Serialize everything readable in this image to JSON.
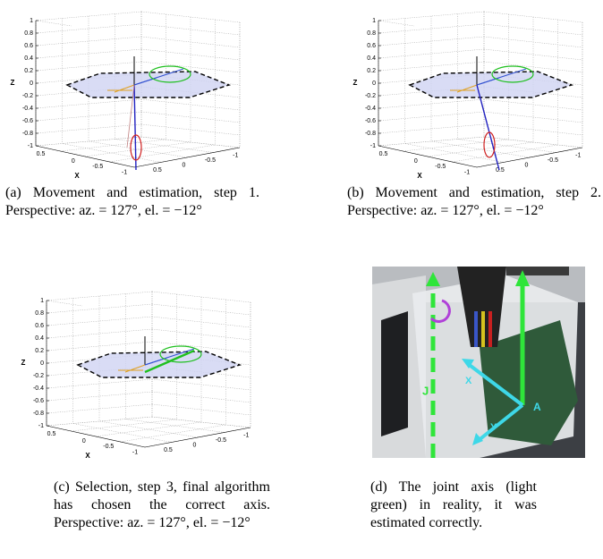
{
  "panels": [
    {
      "z_label": "Z",
      "x_label": "X",
      "z_ticks": [
        "1",
        "0.8",
        "0.6",
        "0.4",
        "0.2",
        "0",
        "-0.2",
        "-0.4",
        "-0.6",
        "-0.8",
        "-1"
      ],
      "x_ticks": [
        "0.5",
        "0",
        "-0.5",
        "-1"
      ],
      "y_ticks": [
        "0.5",
        "0",
        "-0.5",
        "-1"
      ],
      "caption": "(a) Movement and estimation, step 1. Perspective: az. = 127°, el. = −12°"
    },
    {
      "z_label": "Z",
      "x_label": "X",
      "z_ticks": [
        "1",
        "0.8",
        "0.6",
        "0.4",
        "0.2",
        "0",
        "-0.2",
        "-0.4",
        "-0.6",
        "-0.8",
        "-1"
      ],
      "x_ticks": [
        "0.5",
        "0",
        "-0.5",
        "-1"
      ],
      "y_ticks": [
        "0.5",
        "0",
        "-0.5",
        "-1"
      ],
      "caption": "(b) Movement and estimation, step 2. Perspective: az. = 127°, el. = −12°"
    },
    {
      "z_label": "Z",
      "x_label": "X",
      "z_ticks": [
        "1",
        "0.8",
        "0.6",
        "0.4",
        "0.2",
        "0",
        "-0.2",
        "-0.4",
        "-0.6",
        "-0.8",
        "-1"
      ],
      "x_ticks": [
        "0.5",
        "0",
        "-0.5",
        "-1"
      ],
      "y_ticks": [
        "0.5",
        "0",
        "-0.5",
        "-1"
      ],
      "caption": "(c) Selection, step 3, final algorithm has chosen the correct axis. Perspective: az. = 127°, el. = −12°"
    }
  ],
  "photo": {
    "label_j": "J",
    "label_x": "X",
    "label_y": "Y",
    "label_a": "A",
    "caption": "(d) The joint axis (light green) in reality, it was estimated correctly."
  }
}
